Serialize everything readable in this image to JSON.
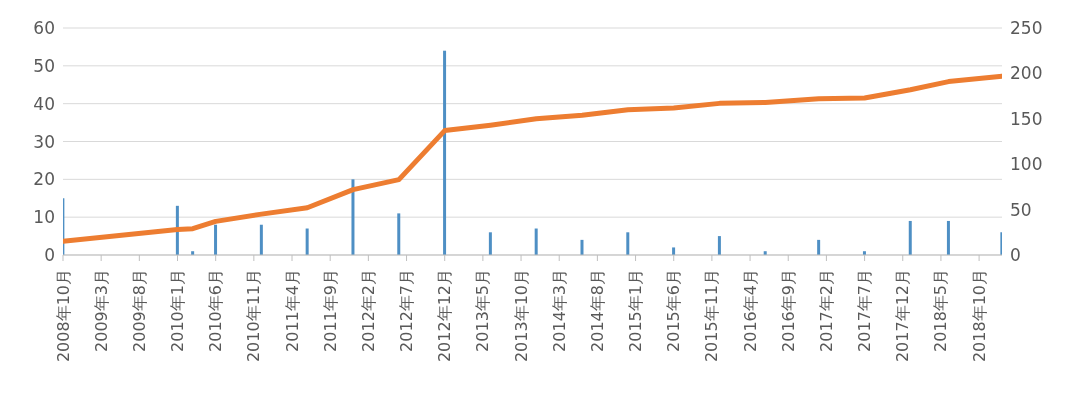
{
  "chart_data": {
    "type": "bar",
    "x": [
      "2008-10",
      "2010-01",
      "2010-03",
      "2010-06",
      "2010-12",
      "2011-06",
      "2011-12",
      "2012-06",
      "2012-12",
      "2013-06",
      "2013-12",
      "2014-06",
      "2014-12",
      "2015-06",
      "2015-12",
      "2016-06",
      "2017-01",
      "2017-07",
      "2018-01",
      "2018-06",
      "2019-01"
    ],
    "series": [
      {
        "color": "#4e8fc4",
        "values": [
          15,
          13,
          1,
          8,
          8,
          7,
          20,
          11,
          54,
          6,
          7,
          4,
          6,
          2,
          5,
          1,
          4,
          1,
          9,
          9,
          6
        ]
      },
      {
        "type": "line",
        "axis": "y2",
        "color": "#ed7d31",
        "values": [
          15,
          28,
          29,
          37,
          45,
          52,
          72,
          83,
          137,
          143,
          150,
          154,
          160,
          162,
          167,
          168,
          172,
          173,
          182,
          191,
          197
        ]
      }
    ],
    "xlim": [
      "2008-10",
      "2019-01"
    ],
    "xticks": [
      {
        "value": "2008-10",
        "label": "2008年10月"
      },
      {
        "value": "2009-03",
        "label": "2009年3月"
      },
      {
        "value": "2009-08",
        "label": "2009年8月"
      },
      {
        "value": "2010-01",
        "label": "2010年1月"
      },
      {
        "value": "2010-06",
        "label": "2010年6月"
      },
      {
        "value": "2010-11",
        "label": "2010年11月"
      },
      {
        "value": "2011-04",
        "label": "2011年4月"
      },
      {
        "value": "2011-09",
        "label": "2011年9月"
      },
      {
        "value": "2012-02",
        "label": "2012年2月"
      },
      {
        "value": "2012-07",
        "label": "2012年7月"
      },
      {
        "value": "2012-12",
        "label": "2012年12月"
      },
      {
        "value": "2013-05",
        "label": "2013年5月"
      },
      {
        "value": "2013-10",
        "label": "2013年10月"
      },
      {
        "value": "2014-03",
        "label": "2014年3月"
      },
      {
        "value": "2014-08",
        "label": "2014年8月"
      },
      {
        "value": "2015-01",
        "label": "2015年1月"
      },
      {
        "value": "2015-06",
        "label": "2015年6月"
      },
      {
        "value": "2015-11",
        "label": "2015年11月"
      },
      {
        "value": "2016-04",
        "label": "2016年4月"
      },
      {
        "value": "2016-09",
        "label": "2016年9月"
      },
      {
        "value": "2017-02",
        "label": "2017年2月"
      },
      {
        "value": "2017-07",
        "label": "2017年7月"
      },
      {
        "value": "2017-12",
        "label": "2017年12月"
      },
      {
        "value": "2018-05",
        "label": "2018年5月"
      },
      {
        "value": "2018-10",
        "label": "2018年10月"
      }
    ],
    "ylim": [
      0,
      60
    ],
    "yticks": [
      0,
      10,
      20,
      30,
      40,
      50,
      60
    ],
    "y2lim": [
      0,
      250
    ],
    "y2ticks": [
      0,
      50,
      100,
      150,
      200,
      250
    ],
    "grid": "y",
    "marker": "none",
    "line_style": "solid"
  }
}
